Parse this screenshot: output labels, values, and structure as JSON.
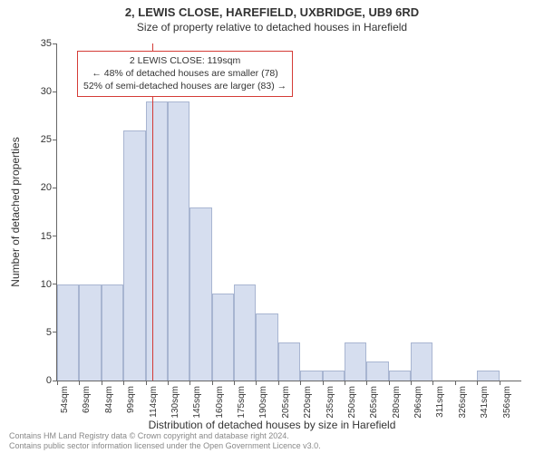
{
  "title": "2, LEWIS CLOSE, HAREFIELD, UXBRIDGE, UB9 6RD",
  "subtitle": "Size of property relative to detached houses in Harefield",
  "ylabel": "Number of detached properties",
  "xlabel": "Distribution of detached houses by size in Harefield",
  "chart": {
    "type": "histogram",
    "background_color": "#ffffff",
    "axis_color": "#666666",
    "tick_fontsize": 11,
    "label_fontsize": 12,
    "title_fontsize": 13,
    "ylim": [
      0,
      35
    ],
    "ytick_step": 5,
    "yticks": [
      0,
      5,
      10,
      15,
      20,
      25,
      30,
      35
    ],
    "xtick_labels": [
      "54sqm",
      "69sqm",
      "84sqm",
      "99sqm",
      "114sqm",
      "130sqm",
      "145sqm",
      "160sqm",
      "175sqm",
      "190sqm",
      "205sqm",
      "220sqm",
      "235sqm",
      "250sqm",
      "265sqm",
      "280sqm",
      "296sqm",
      "311sqm",
      "326sqm",
      "341sqm",
      "356sqm"
    ],
    "bar_values": [
      10,
      10,
      10,
      26,
      29,
      29,
      18,
      9,
      10,
      7,
      4,
      1,
      1,
      4,
      2,
      1,
      4,
      0,
      0,
      1,
      0
    ],
    "bar_color": "#d6deef",
    "bar_border_color": "#a8b5d1",
    "bar_width_ratio": 1.0,
    "marker": {
      "value_label": "119sqm",
      "position_index": 4.3,
      "color": "#d43b36"
    }
  },
  "annotation": {
    "lines": [
      "2 LEWIS CLOSE: 119sqm",
      "← 48% of detached houses are smaller (78)",
      "52% of semi-detached houses are larger (83) →"
    ],
    "border_color": "#d43b36",
    "background_color": "#ffffff",
    "fontsize": 10.5
  },
  "footer": {
    "line1": "Contains HM Land Registry data © Crown copyright and database right 2024.",
    "line2": "Contains public sector information licensed under the Open Government Licence v3.0.",
    "color": "#888888",
    "fontsize": 9
  }
}
